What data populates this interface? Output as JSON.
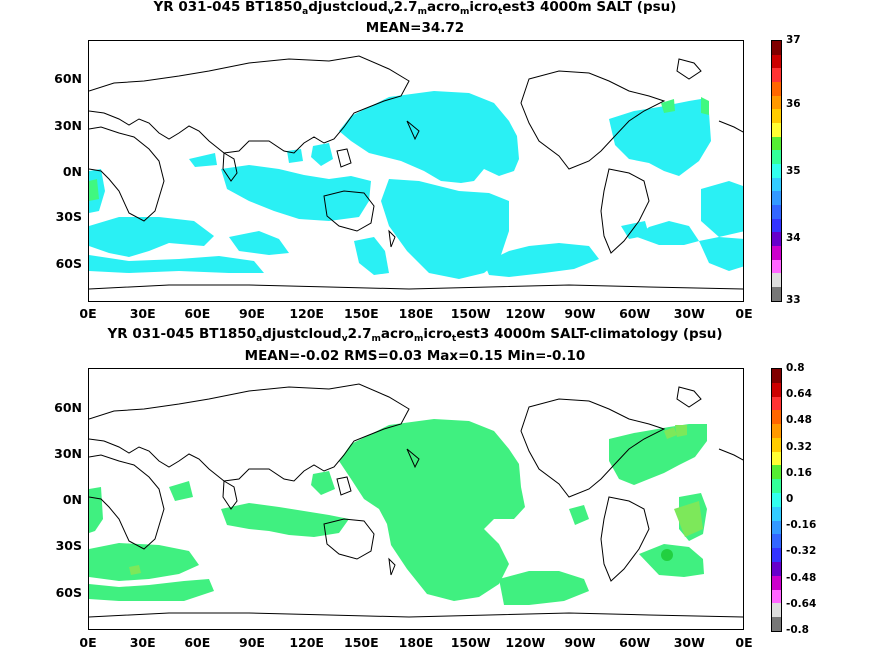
{
  "panels": [
    {
      "title_parts": [
        "YR 031-045 BT1850",
        "a",
        "djustcloud",
        "v",
        "2.7",
        "m",
        "acro",
        "m",
        "icro",
        "t",
        "est3 4000m SALT (psu)"
      ],
      "stats": "MEAN=34.72",
      "colorbar_labels": [
        "37",
        "36",
        "35",
        "34",
        "33"
      ],
      "colorbar_colors": [
        "#800000",
        "#cc0000",
        "#ff3333",
        "#ff6600",
        "#ff9900",
        "#ffcc00",
        "#ffff33",
        "#55ee33",
        "#33ff99",
        "#33ffee",
        "#33ccff",
        "#3399ff",
        "#3366ff",
        "#3333ff",
        "#6600cc",
        "#cc00cc",
        "#ff66ff",
        "#dddddd",
        "#777777"
      ],
      "fill_color": "#2af0f4",
      "edge_color": "#40f880"
    },
    {
      "title_parts": [
        "YR 031-045 BT1850",
        "a",
        "djustcloud",
        "v",
        "2.7",
        "m",
        "acro",
        "m",
        "icro",
        "t",
        "est3 4000m SALT-climatology (psu)"
      ],
      "stats": "MEAN=-0.02   RMS=0.03   Max=0.15   Min=-0.10",
      "colorbar_labels": [
        "0.8",
        "0.64",
        "0.48",
        "0.32",
        "0.16",
        "0",
        "-0.16",
        "-0.32",
        "-0.48",
        "-0.64",
        "-0.8"
      ],
      "colorbar_colors": [
        "#800000",
        "#cc0000",
        "#ff3333",
        "#ff6600",
        "#ff9900",
        "#ffcc00",
        "#ffff33",
        "#55ee33",
        "#33ff99",
        "#33ffee",
        "#33ccff",
        "#3399ff",
        "#3366ff",
        "#3333ff",
        "#6600cc",
        "#cc00cc",
        "#ff66ff",
        "#dddddd",
        "#777777"
      ],
      "fill_color": "#40f080",
      "edge_color": "#7de85a"
    }
  ],
  "lat_labels": [
    "60N",
    "30N",
    "0N",
    "30S",
    "60S"
  ],
  "lon_labels": [
    "0E",
    "30E",
    "60E",
    "90E",
    "120E",
    "150E",
    "180E",
    "150W",
    "120W",
    "90W",
    "60W",
    "30W",
    "0E"
  ]
}
